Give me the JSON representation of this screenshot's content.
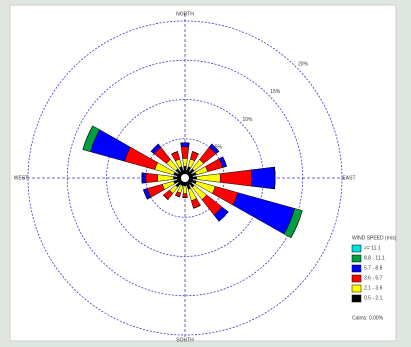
{
  "chart_data": {
    "type": "windrose",
    "categories": [
      "NORTH",
      null,
      null,
      null,
      "EAST",
      null,
      null,
      null,
      "SOUTH",
      null,
      null,
      null,
      "WEST",
      null,
      null,
      null
    ],
    "rlim": [
      0,
      20
    ],
    "rticks": [
      {
        "value": 5,
        "label": "5%"
      },
      {
        "value": 10,
        "label": "10%"
      },
      {
        "value": 15,
        "label": "15%"
      },
      {
        "value": 20,
        "label": "20%"
      }
    ],
    "legend_title": "WIND SPEED (m/s)",
    "calms": "Calms: 0.00%",
    "legend_position": "lower right",
    "series": [
      {
        "name": "0.5 - 2.1",
        "color": "#000000",
        "values": [
          1.5,
          1.5,
          1.5,
          1.5,
          1.5,
          1.5,
          1.5,
          1.5,
          1,
          1,
          1.5,
          1.5,
          1.5,
          1.5,
          1.5,
          1.5
        ]
      },
      {
        "name": "2.1 - 3.6",
        "color": "#ffff00",
        "values": [
          1,
          1,
          1.5,
          1.5,
          3,
          2.5,
          2,
          1.5,
          1,
          1,
          1,
          1.5,
          2,
          2.5,
          1.5,
          1
        ]
      },
      {
        "name": "3.6 - 5.7",
        "color": "#ff0000",
        "values": [
          1.5,
          1,
          2,
          2,
          4,
          3,
          2.5,
          1,
          0.5,
          0.5,
          1,
          2,
          1.5,
          4,
          2,
          1
        ]
      },
      {
        "name": "5.7 - 8.8",
        "color": "#0000ff",
        "values": [
          0.5,
          0,
          0.5,
          0.5,
          3,
          7.5,
          1,
          0,
          0,
          0,
          0,
          0.5,
          0.5,
          4.5,
          0.5,
          0
        ]
      },
      {
        "name": "8.8 - 11.1",
        "color": "#00a040",
        "values": [
          0,
          0,
          0,
          0,
          0,
          1,
          0,
          0,
          0,
          0,
          0,
          0,
          0,
          1,
          0,
          0
        ]
      },
      {
        "name": ">= 11.1",
        "color": "#00e0e0",
        "values": [
          0,
          0,
          0,
          0,
          0,
          0,
          0,
          0,
          0,
          0,
          0,
          0,
          0,
          0,
          0,
          0
        ]
      }
    ]
  }
}
